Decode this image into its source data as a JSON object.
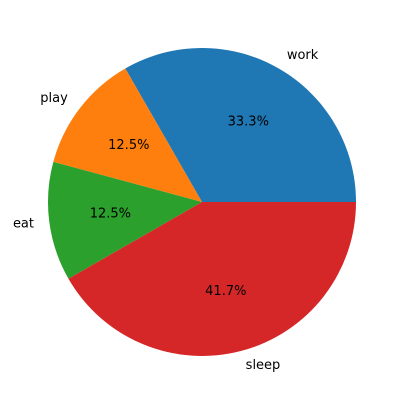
{
  "chart_data": {
    "type": "pie",
    "title": "",
    "categories": [
      "work",
      "play",
      "eat",
      "sleep"
    ],
    "values": [
      33.3,
      12.5,
      12.5,
      41.7
    ],
    "percent_labels": [
      "33.3%",
      "12.5%",
      "12.5%",
      "41.7%"
    ],
    "colors": [
      "#1f77b4",
      "#ff7f0e",
      "#2ca02c",
      "#d62728"
    ],
    "start_angle_deg": 0,
    "direction": "counterclockwise",
    "legend": "none",
    "grid": false
  }
}
